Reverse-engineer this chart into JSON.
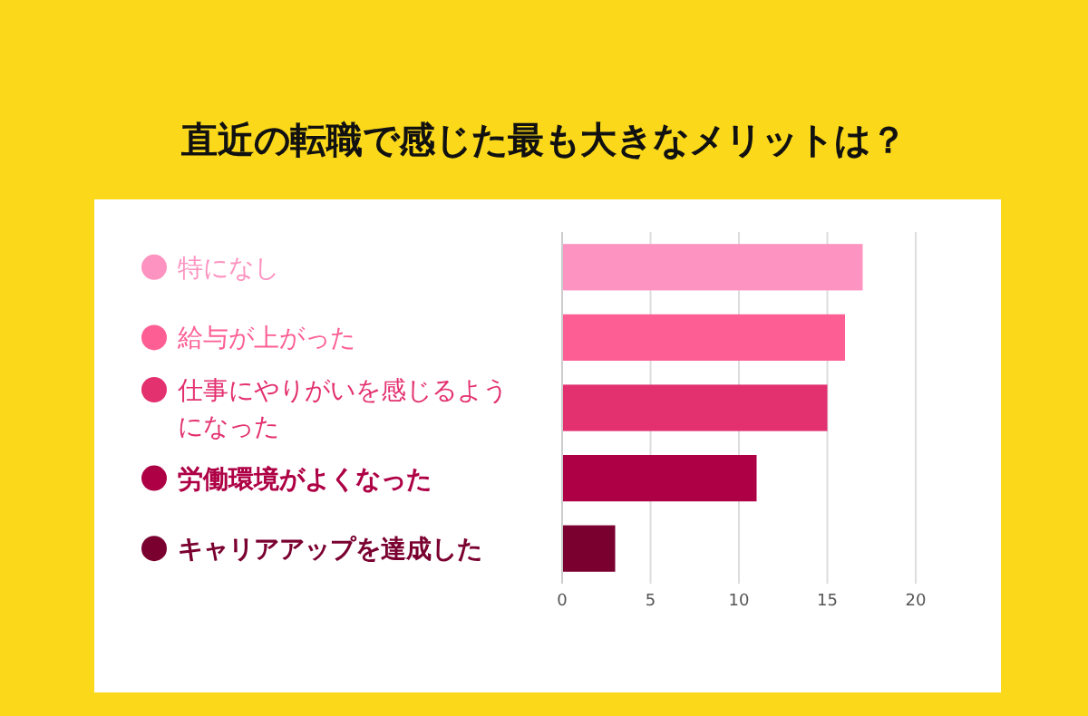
{
  "chart_data": {
    "type": "bar",
    "orientation": "horizontal",
    "title": "直近の転職で感じた最も大きなメリットは？",
    "categories": [
      "特になし",
      "給与が上がった",
      "仕事にやりがいを感じるようになった",
      "労働環境がよくなった",
      "キャリアアップを達成した"
    ],
    "values": [
      17,
      16,
      15,
      11,
      3
    ],
    "colors": [
      "#fd93c0",
      "#fd5f95",
      "#e3306f",
      "#ae0045",
      "#7a0030"
    ],
    "xlim": [
      0,
      20
    ],
    "xticks": [
      0,
      5,
      10,
      15,
      20
    ],
    "grid": "x"
  }
}
